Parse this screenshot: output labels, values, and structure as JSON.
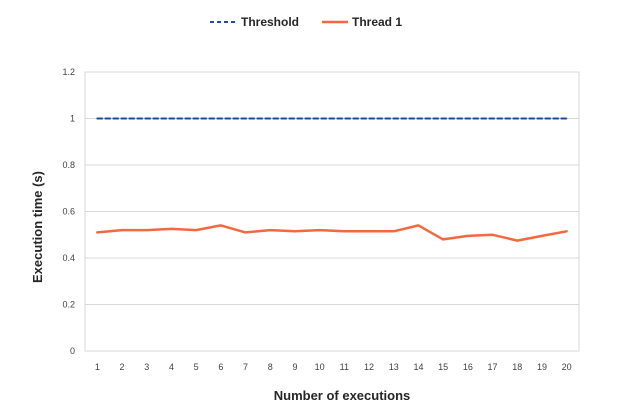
{
  "chart_data": {
    "type": "line",
    "title": "",
    "xlabel": "Number of executions",
    "ylabel": "Execution time (s)",
    "ylim": [
      0,
      1.2
    ],
    "yticks": [
      "0",
      "0.2",
      "0.4",
      "0.6",
      "0.8",
      "1",
      "1.2"
    ],
    "categories": [
      "1",
      "2",
      "3",
      "4",
      "5",
      "6",
      "7",
      "8",
      "9",
      "10",
      "11",
      "12",
      "13",
      "14",
      "15",
      "16",
      "17",
      "18",
      "19",
      "20"
    ],
    "grid": "horizontal",
    "legend_position": "top",
    "series": [
      {
        "name": "Threshold",
        "color": "#1f4e9c",
        "style": "dashed",
        "values": [
          1,
          1,
          1,
          1,
          1,
          1,
          1,
          1,
          1,
          1,
          1,
          1,
          1,
          1,
          1,
          1,
          1,
          1,
          1,
          1
        ]
      },
      {
        "name": "Thread 1",
        "color": "#f4683f",
        "style": "solid",
        "values": [
          0.51,
          0.52,
          0.52,
          0.525,
          0.52,
          0.54,
          0.51,
          0.52,
          0.515,
          0.52,
          0.515,
          0.515,
          0.515,
          0.54,
          0.48,
          0.495,
          0.5,
          0.475,
          0.495,
          0.515
        ]
      }
    ]
  }
}
